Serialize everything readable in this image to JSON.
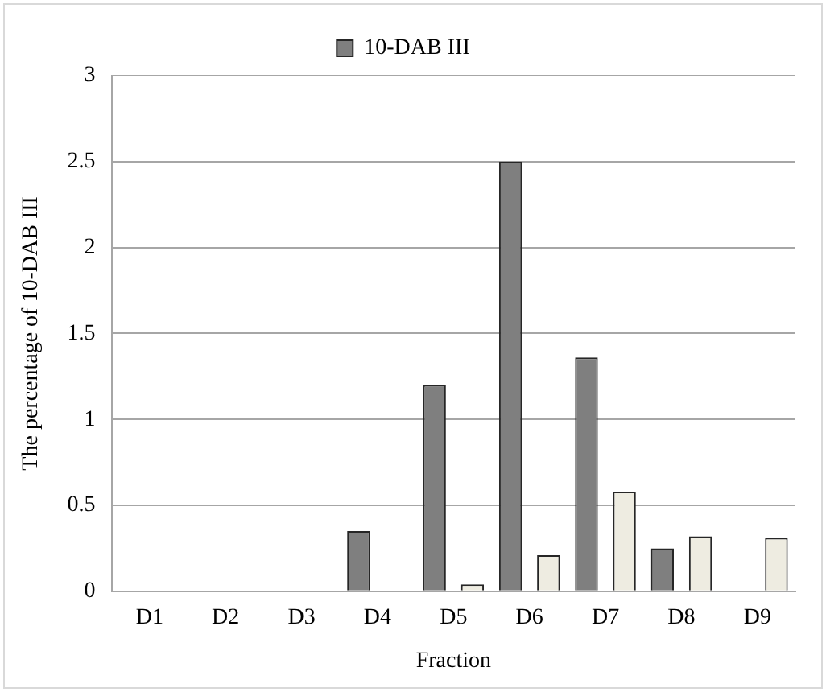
{
  "chart_data": {
    "type": "bar",
    "xlabel": "Fraction",
    "ylabel": "The percentage of 10-DAB III",
    "categories": [
      "D1",
      "D2",
      "D3",
      "D4",
      "D5",
      "D6",
      "D7",
      "D8",
      "D9"
    ],
    "series": [
      {
        "name": "10-DAB III",
        "color": "#7f7f7f",
        "values": [
          0,
          0,
          0,
          0.35,
          1.2,
          2.5,
          1.36,
          0.25,
          0
        ]
      },
      {
        "color": "#eeece1",
        "values": [
          0,
          0,
          0,
          0,
          0.04,
          0.21,
          0.58,
          0.32,
          0.31
        ]
      }
    ],
    "ylim": [
      0,
      3
    ],
    "yticks": [
      0,
      0.5,
      1,
      1.5,
      2,
      2.5,
      3
    ],
    "grid": "y",
    "legend": "top"
  }
}
